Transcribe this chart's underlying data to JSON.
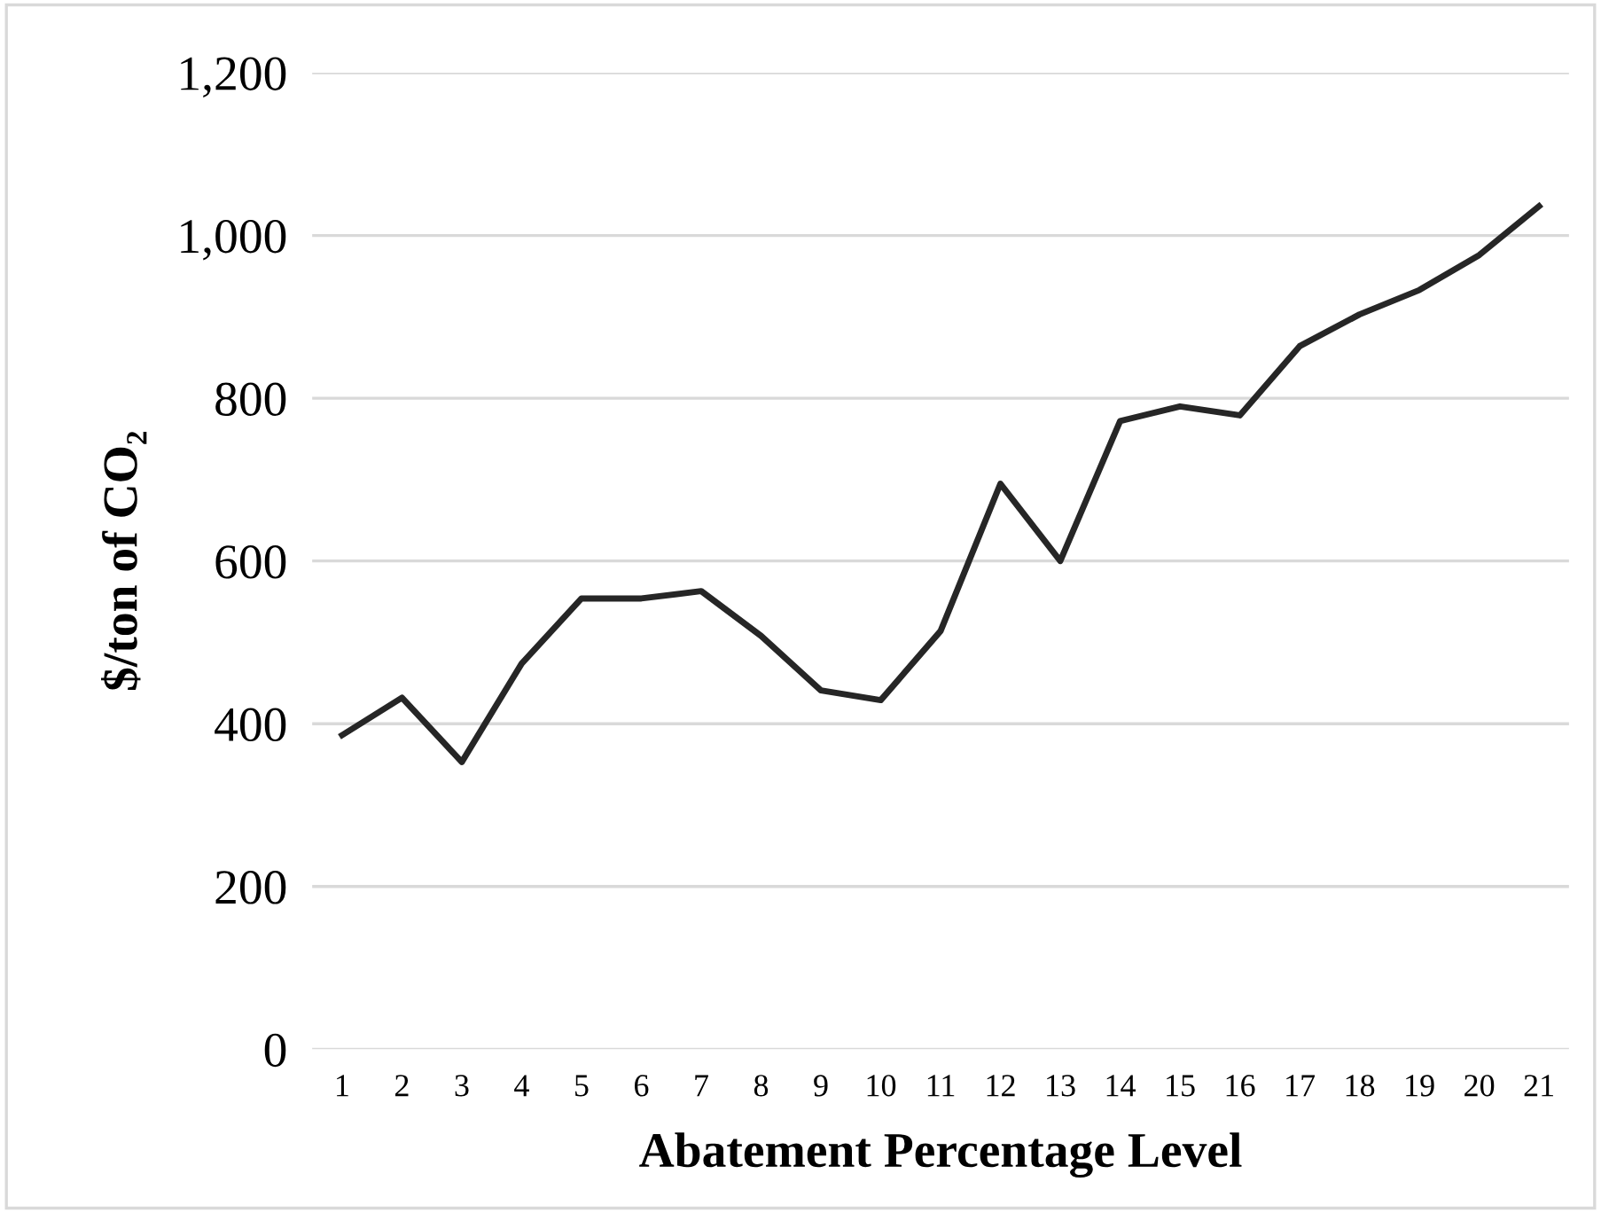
{
  "chart_data": {
    "type": "line",
    "xlabel": "Abatement Percentage Level",
    "ylabel": "$/ton of CO₂",
    "categories": [
      "1",
      "2",
      "3",
      "4",
      "5",
      "6",
      "7",
      "8",
      "9",
      "10",
      "11",
      "12",
      "13",
      "14",
      "15",
      "16",
      "17",
      "18",
      "19",
      "20",
      "21"
    ],
    "series": [
      {
        "color": "#262626",
        "values": [
          386,
          432,
          353,
          474,
          554,
          554,
          563,
          508,
          441,
          429,
          514,
          695,
          600,
          772,
          790,
          779,
          864,
          903,
          933,
          976,
          1036
        ]
      }
    ],
    "ylim": [
      0,
      1200
    ],
    "yticks": [
      {
        "value": 0,
        "label": "0"
      },
      {
        "value": 200,
        "label": "200"
      },
      {
        "value": 400,
        "label": "400"
      },
      {
        "value": 600,
        "label": "600"
      },
      {
        "value": 800,
        "label": "800"
      },
      {
        "value": 1000,
        "label": "1,000"
      },
      {
        "value": 1200,
        "label": "1,200"
      }
    ],
    "grid": "y",
    "marker": "none",
    "line_style": "solid"
  }
}
